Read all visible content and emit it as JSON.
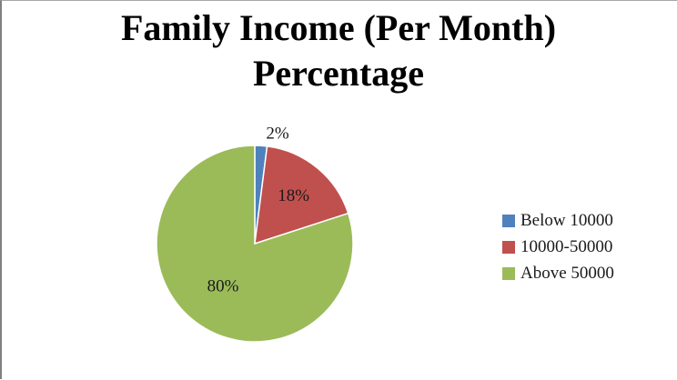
{
  "chart_data": {
    "type": "pie",
    "title": "Family Income (Per Month) Percentage",
    "title_lines": [
      "Family Income (Per Month)",
      "Percentage"
    ],
    "legend_position": "right",
    "slices": [
      {
        "label": "Below 10000",
        "value": 2,
        "value_label": "2%",
        "color": "#4f81bd"
      },
      {
        "label": "10000-50000",
        "value": 18,
        "value_label": "18%",
        "color": "#c0504d"
      },
      {
        "label": "Above 50000",
        "value": 80,
        "value_label": "80%",
        "color": "#9bbb59"
      }
    ]
  }
}
